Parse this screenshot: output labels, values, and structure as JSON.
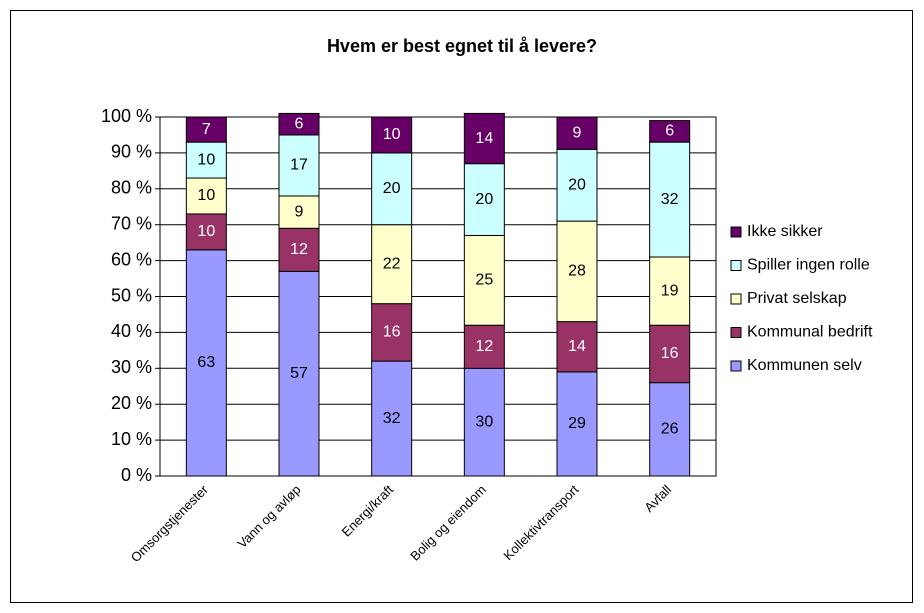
{
  "chart_data": {
    "type": "stacked_bar",
    "title": "Hvem er best egnet til å levere?",
    "categories": [
      "Omsorgstjenester",
      "Vann og avløp",
      "Energi/kraft",
      "Bolig og eiendom",
      "Kollektivtransport",
      "Avfall"
    ],
    "series": [
      {
        "name": "Kommunen selv",
        "color": "#9999ff",
        "values": [
          63,
          57,
          32,
          30,
          29,
          26
        ]
      },
      {
        "name": "Kommunal bedrift",
        "color": "#993366",
        "values": [
          10,
          12,
          16,
          12,
          14,
          16
        ]
      },
      {
        "name": "Privat selskap",
        "color": "#ffffcc",
        "values": [
          10,
          9,
          22,
          25,
          28,
          19
        ]
      },
      {
        "name": "Spiller ingen rolle",
        "color": "#ccffff",
        "values": [
          10,
          17,
          20,
          20,
          20,
          32
        ]
      },
      {
        "name": "Ikke sikker",
        "color": "#660066",
        "values": [
          7,
          6,
          10,
          14,
          9,
          6
        ]
      }
    ],
    "ylim": [
      0,
      100
    ],
    "yticks": [
      {
        "value": 0,
        "label": "0 %"
      },
      {
        "value": 10,
        "label": "10 %"
      },
      {
        "value": 20,
        "label": "20 %"
      },
      {
        "value": 30,
        "label": "30 %"
      },
      {
        "value": 40,
        "label": "40 %"
      },
      {
        "value": 50,
        "label": "50 %"
      },
      {
        "value": 60,
        "label": "60 %"
      },
      {
        "value": 70,
        "label": "70 %"
      },
      {
        "value": 80,
        "label": "80 %"
      },
      {
        "value": 90,
        "label": "90 %"
      },
      {
        "value": 100,
        "label": "100 %"
      }
    ],
    "grid": true,
    "legend": "right"
  }
}
